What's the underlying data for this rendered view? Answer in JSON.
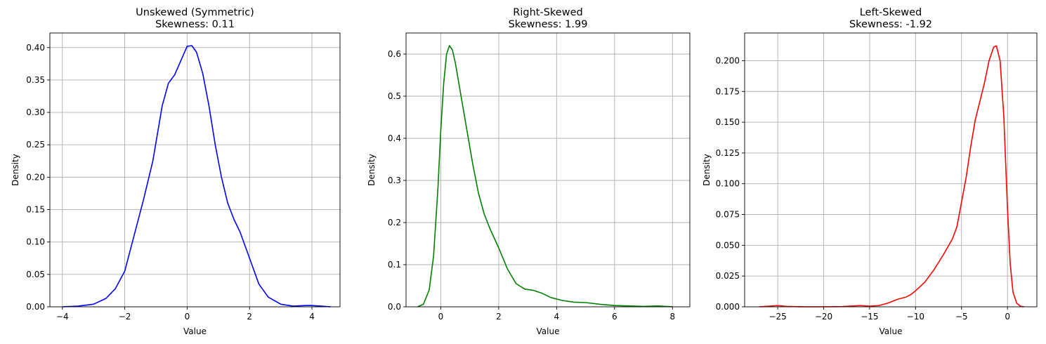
{
  "chart_data": [
    {
      "type": "line",
      "title": "Unskewed (Symmetric)",
      "subtitle": "Skewness: 0.11",
      "xlabel": "Value",
      "ylabel": "Density",
      "xlim": [
        -4.4,
        4.9
      ],
      "ylim": [
        0,
        0.4225
      ],
      "xticks": [
        -4,
        -2,
        0,
        2,
        4
      ],
      "xtick_labels": [
        "−4",
        "−2",
        "0",
        "2",
        "4"
      ],
      "yticks": [
        0,
        0.05,
        0.1,
        0.15,
        0.2,
        0.25,
        0.3,
        0.35,
        0.4
      ],
      "ytick_labels": [
        "0.00",
        "0.05",
        "0.10",
        "0.15",
        "0.20",
        "0.25",
        "0.30",
        "0.35",
        "0.40"
      ],
      "grid": true,
      "color": "#0000ff",
      "series": [
        {
          "x": [
            -4.0,
            -3.5,
            -3.0,
            -2.6,
            -2.3,
            -2.0,
            -1.7,
            -1.4,
            -1.1,
            -0.8,
            -0.6,
            -0.4,
            -0.2,
            0.0,
            0.15,
            0.3,
            0.5,
            0.7,
            0.9,
            1.1,
            1.3,
            1.5,
            1.7,
            2.0,
            2.3,
            2.6,
            3.0,
            3.4,
            3.8,
            4.0,
            4.3,
            4.6
          ],
          "y": [
            0.0,
            0.001,
            0.004,
            0.013,
            0.028,
            0.055,
            0.11,
            0.165,
            0.225,
            0.31,
            0.345,
            0.358,
            0.38,
            0.402,
            0.403,
            0.393,
            0.36,
            0.31,
            0.25,
            0.2,
            0.16,
            0.135,
            0.115,
            0.075,
            0.035,
            0.015,
            0.004,
            0.001,
            0.002,
            0.002,
            0.001,
            0.0
          ]
        }
      ]
    },
    {
      "type": "line",
      "title": "Right-Skewed",
      "subtitle": "Skewness: 1.99",
      "xlabel": "Value",
      "ylabel": "Density",
      "xlim": [
        -1.2,
        8.6
      ],
      "ylim": [
        0,
        0.65
      ],
      "xticks": [
        0,
        2,
        4,
        6,
        8
      ],
      "xtick_labels": [
        "0",
        "2",
        "4",
        "6",
        "8"
      ],
      "yticks": [
        0,
        0.1,
        0.2,
        0.3,
        0.4,
        0.5,
        0.6
      ],
      "ytick_labels": [
        "0.0",
        "0.1",
        "0.2",
        "0.3",
        "0.4",
        "0.5",
        "0.6"
      ],
      "grid": true,
      "color": "#008000",
      "series": [
        {
          "x": [
            -0.8,
            -0.6,
            -0.4,
            -0.25,
            -0.1,
            0.0,
            0.1,
            0.2,
            0.3,
            0.4,
            0.5,
            0.7,
            0.9,
            1.1,
            1.3,
            1.5,
            1.7,
            2.0,
            2.3,
            2.6,
            2.9,
            3.2,
            3.5,
            3.8,
            4.2,
            4.6,
            5.0,
            5.5,
            6.0,
            6.5,
            7.0,
            7.5,
            8.0
          ],
          "y": [
            0.0,
            0.006,
            0.04,
            0.12,
            0.28,
            0.42,
            0.53,
            0.6,
            0.62,
            0.61,
            0.58,
            0.5,
            0.42,
            0.34,
            0.27,
            0.22,
            0.185,
            0.14,
            0.09,
            0.055,
            0.042,
            0.039,
            0.032,
            0.022,
            0.015,
            0.011,
            0.01,
            0.006,
            0.003,
            0.002,
            0.001,
            0.002,
            0.0
          ]
        }
      ]
    },
    {
      "type": "line",
      "title": "Left-Skewed",
      "subtitle": "Skewness: -1.92",
      "xlabel": "Value",
      "ylabel": "Density",
      "xlim": [
        -28.6,
        3.2
      ],
      "ylim": [
        0,
        0.2225
      ],
      "xticks": [
        -25,
        -20,
        -15,
        -10,
        -5,
        0
      ],
      "xtick_labels": [
        "−25",
        "−20",
        "−15",
        "−10",
        "−5",
        "0"
      ],
      "yticks": [
        0,
        0.025,
        0.05,
        0.075,
        0.1,
        0.125,
        0.15,
        0.175,
        0.2
      ],
      "ytick_labels": [
        "0.000",
        "0.025",
        "0.050",
        "0.075",
        "0.100",
        "0.125",
        "0.150",
        "0.175",
        "0.200"
      ],
      "grid": true,
      "color": "#ff0000",
      "series": [
        {
          "x": [
            -27.0,
            -26.0,
            -25.0,
            -24.0,
            -22.0,
            -20.0,
            -18.0,
            -16.0,
            -15.0,
            -14.0,
            -13.0,
            -12.0,
            -11.0,
            -10.5,
            -10.0,
            -9.0,
            -8.0,
            -7.0,
            -6.0,
            -5.5,
            -5.0,
            -4.5,
            -4.0,
            -3.5,
            -3.0,
            -2.5,
            -2.0,
            -1.5,
            -1.2,
            -0.8,
            -0.4,
            0.0,
            0.3,
            0.6,
            1.0,
            1.4,
            1.8
          ],
          "y": [
            0.0,
            0.0005,
            0.001,
            0.0003,
            0.0,
            0.0,
            0.0002,
            0.001,
            0.0005,
            0.001,
            0.003,
            0.006,
            0.008,
            0.01,
            0.013,
            0.02,
            0.03,
            0.042,
            0.055,
            0.065,
            0.085,
            0.105,
            0.13,
            0.152,
            0.167,
            0.182,
            0.2,
            0.211,
            0.212,
            0.2,
            0.155,
            0.08,
            0.035,
            0.012,
            0.003,
            0.0005,
            0.0
          ]
        }
      ]
    }
  ]
}
